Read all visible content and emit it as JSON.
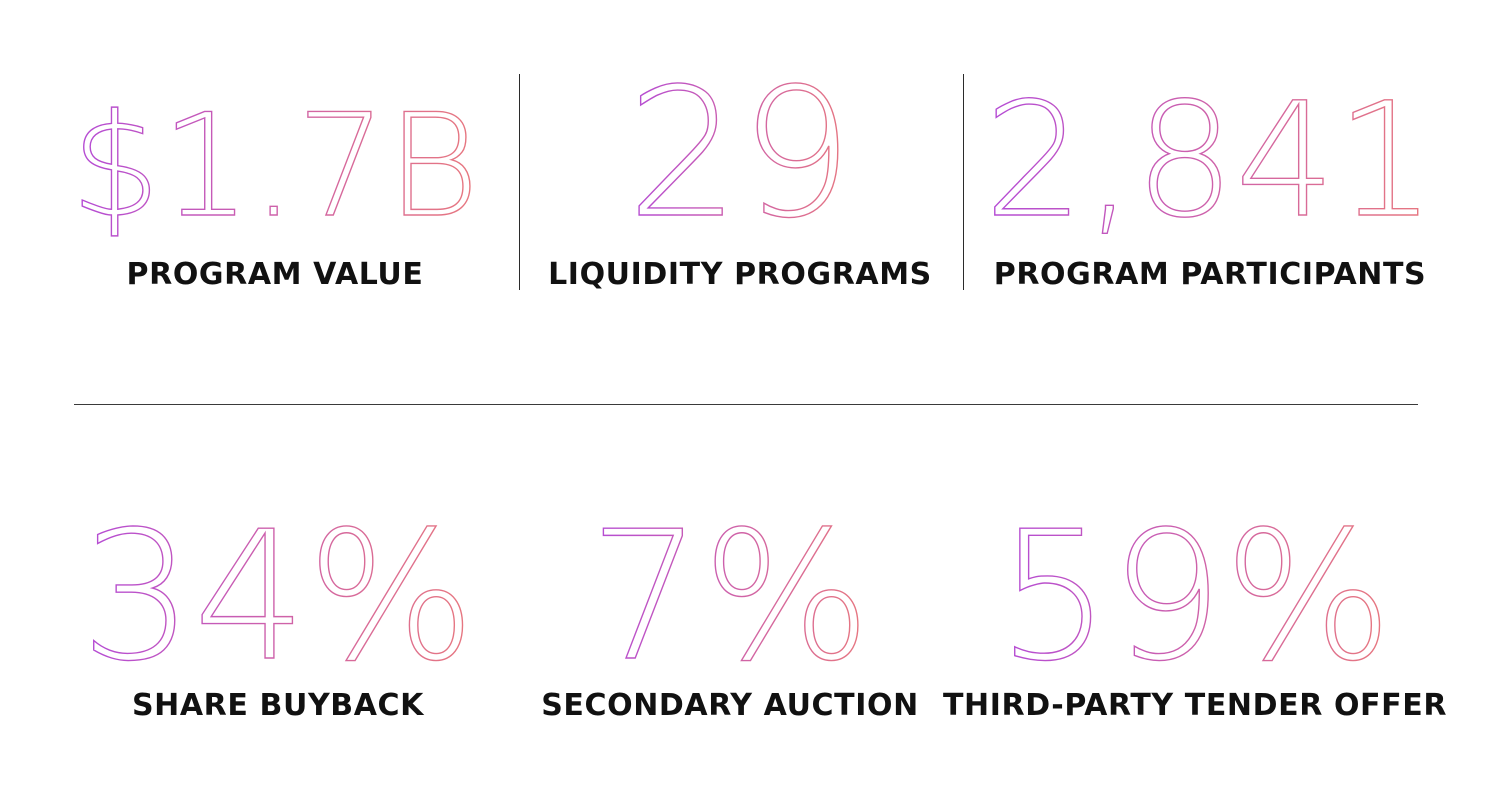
{
  "colors": {
    "gradient_start": "#b44bd6",
    "gradient_end": "#e8787e",
    "label": "#111111",
    "divider": "#2b2b2b"
  },
  "stats_top": [
    {
      "value": "$1.7B",
      "label": "PROGRAM VALUE"
    },
    {
      "value": "29",
      "label": "LIQUIDITY PROGRAMS"
    },
    {
      "value": "2,841",
      "label": "PROGRAM PARTICIPANTS"
    }
  ],
  "stats_bottom": [
    {
      "value": "34%",
      "label": "SHARE BUYBACK"
    },
    {
      "value": "7%",
      "label": "SECONDARY AUCTION"
    },
    {
      "value": "59%",
      "label": "THIRD-PARTY TENDER OFFER"
    }
  ]
}
